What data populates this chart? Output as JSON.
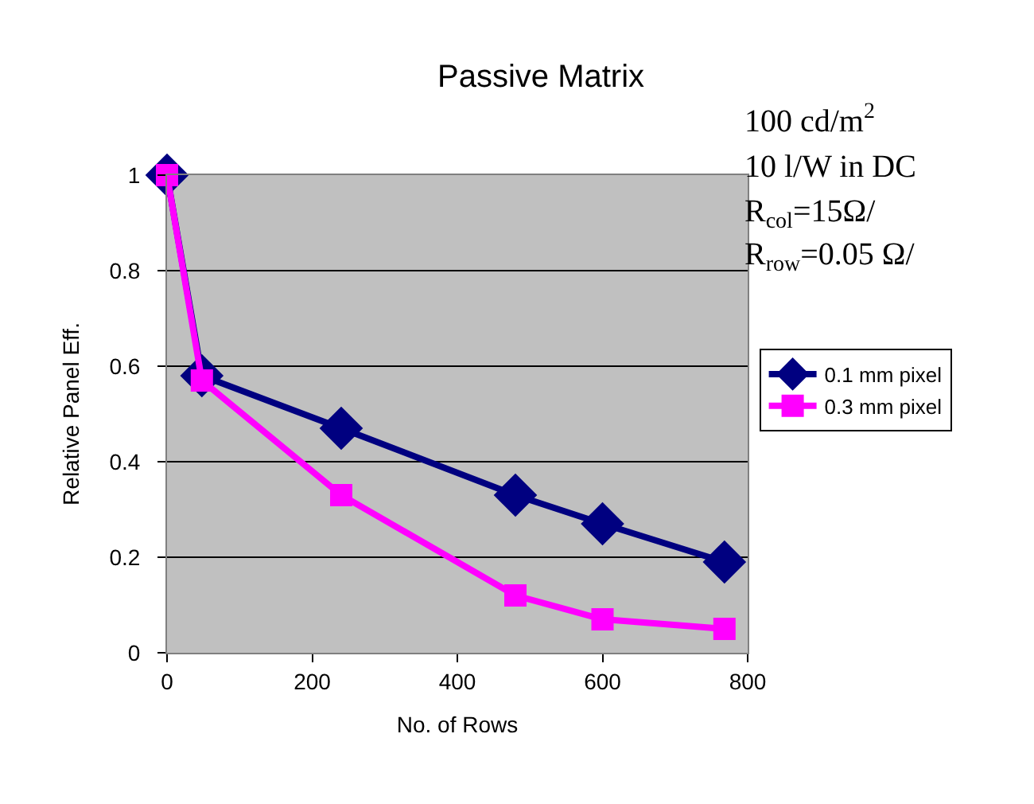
{
  "chart_data": {
    "type": "line",
    "title": "Passive Matrix",
    "xlabel": "No. of Rows",
    "ylabel": "Relative Panel Eff.",
    "x": [
      0,
      48,
      240,
      480,
      600,
      768
    ],
    "series": [
      {
        "name": "0.1 mm pixel",
        "color": "#000080",
        "marker": "diamond",
        "values": [
          1,
          0.58,
          0.47,
          0.33,
          0.27,
          0.19
        ]
      },
      {
        "name": "0.3 mm pixel",
        "color": "#ff00ff",
        "marker": "square",
        "values": [
          1,
          0.57,
          0.33,
          0.12,
          0.07,
          0.05
        ]
      }
    ],
    "xlim": [
      0,
      800
    ],
    "xticks": [
      0,
      200,
      400,
      600,
      800
    ],
    "ylim": [
      0,
      1
    ],
    "yticks": [
      0,
      0.2,
      0.4,
      0.6,
      0.8,
      1
    ],
    "grid": "y",
    "legend": "right",
    "line_style": "solid",
    "annotations": [
      "100 cd/m$^{2}$",
      "10 l/W in DC",
      "R$_{col}$=15Ω/",
      "R$_{row}$=0.05 Ω/"
    ]
  }
}
